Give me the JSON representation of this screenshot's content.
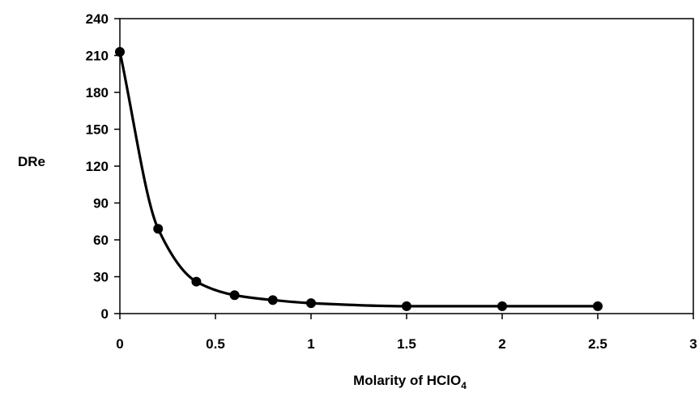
{
  "chart_data": {
    "type": "line",
    "title": "",
    "xlabel": "Molarity of HClO",
    "xlabel_subscript": "4",
    "ylabel": "DRe",
    "xlim": [
      0,
      3
    ],
    "ylim": [
      0,
      240
    ],
    "x_ticks": [
      0,
      0.5,
      1,
      1.5,
      2,
      2.5,
      3
    ],
    "x_tick_labels": [
      "0",
      "0.5",
      "1",
      "1.5",
      "2",
      "2.5",
      "3"
    ],
    "y_ticks": [
      0,
      30,
      60,
      90,
      120,
      150,
      180,
      210,
      240
    ],
    "y_tick_labels": [
      "0",
      "30",
      "60",
      "90",
      "120",
      "150",
      "180",
      "210",
      "240"
    ],
    "grid": false,
    "legend": "none",
    "series": [
      {
        "x": [
          0,
          0.2,
          0.4,
          0.6,
          0.8,
          1.0,
          1.5,
          2.0,
          2.5
        ],
        "y": [
          213,
          69,
          26,
          15,
          11,
          8.5,
          6,
          6,
          6
        ],
        "color": "#000000",
        "marker": "circle",
        "smooth": true
      }
    ]
  }
}
